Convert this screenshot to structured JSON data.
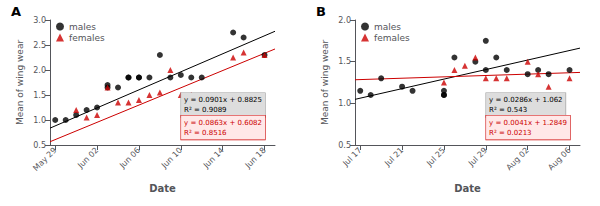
{
  "chart_data": [
    {
      "type": "scatter",
      "title": "A",
      "x_label": "Date",
      "y_label": "Mean of wing wear",
      "xlim": [
        -0.5,
        21
      ],
      "ylim": [
        0.5,
        3.0
      ],
      "xticks": [
        {
          "value": 0,
          "label": "May 29"
        },
        {
          "value": 4,
          "label": "Jun 02"
        },
        {
          "value": 8,
          "label": "Jun 06"
        },
        {
          "value": 12,
          "label": "Jun 10"
        },
        {
          "value": 16,
          "label": "Jun 14"
        },
        {
          "value": 20,
          "label": "Jun 18"
        }
      ],
      "yticks": [
        0.5,
        {
          "value": 1.0,
          "label": "1.0"
        },
        1.5,
        {
          "value": 2.0,
          "label": "2.0"
        },
        2.5,
        {
          "value": 3.0,
          "label": "3.0"
        }
      ],
      "grid": false,
      "legend": "upper left",
      "series": [
        {
          "name": "males",
          "type": "scatter",
          "color": "#000000",
          "marker": "circle",
          "x": [
            0,
            1,
            2,
            3,
            4,
            5,
            5,
            6,
            7,
            7,
            8,
            8,
            9,
            10,
            11,
            12,
            13,
            14,
            17,
            18,
            20
          ],
          "values": [
            1.0,
            1.0,
            1.1,
            1.2,
            1.25,
            1.65,
            1.7,
            1.65,
            1.85,
            1.85,
            1.85,
            1.85,
            1.85,
            2.3,
            1.85,
            1.9,
            1.85,
            1.85,
            2.75,
            2.65,
            2.3
          ]
        },
        {
          "name": "females",
          "type": "scatter",
          "color": "#cc0000",
          "marker": "triangle",
          "x": [
            2,
            3,
            4,
            5,
            6,
            7,
            8,
            9,
            10,
            11,
            12,
            13,
            14,
            17,
            18,
            20
          ],
          "values": [
            1.2,
            1.05,
            1.1,
            1.65,
            1.35,
            1.35,
            1.4,
            1.5,
            1.55,
            2.0,
            1.5,
            1.5,
            1.45,
            2.25,
            2.35,
            2.3
          ]
        },
        {
          "type": "line",
          "color": "#000000",
          "x": [
            -0.5,
            21
          ],
          "values": [
            0.83745,
            2.7746
          ]
        },
        {
          "type": "line",
          "color": "#cc0000",
          "x": [
            -0.5,
            21
          ],
          "values": [
            0.56505,
            2.4205
          ]
        }
      ],
      "annotations": [
        {
          "text": "y = 0.0901x + 0.8825\nR² = 0.9089",
          "color": "#000000"
        },
        {
          "text": "y = 0.0863x + 0.6082\nR² = 0.8516",
          "color": "#cc0000"
        }
      ]
    },
    {
      "type": "scatter",
      "title": "B",
      "x_label": "Date",
      "y_label": "Mean of wing wear",
      "xlim": [
        -0.5,
        21
      ],
      "ylim": [
        0.5,
        2.0
      ],
      "xticks": [
        {
          "value": 0,
          "label": "Jul 17"
        },
        {
          "value": 4,
          "label": "Jul 21"
        },
        {
          "value": 8,
          "label": "Jul 25"
        },
        {
          "value": 12,
          "label": "Jul 29"
        },
        {
          "value": 16,
          "label": "Aug 02"
        },
        {
          "value": 20,
          "label": "Aug 06"
        }
      ],
      "yticks": [
        0.5,
        {
          "value": 1.0,
          "label": "1.0"
        },
        1.5,
        {
          "value": 2.0,
          "label": "2.0"
        }
      ],
      "grid": false,
      "legend": "upper left",
      "series": [
        {
          "name": "males",
          "type": "scatter",
          "color": "#000000",
          "marker": "circle",
          "x": [
            0,
            1,
            2,
            4,
            5,
            8,
            8,
            8,
            9,
            11,
            12,
            12,
            13,
            14,
            16,
            17,
            18,
            20
          ],
          "values": [
            1.15,
            1.1,
            1.3,
            1.2,
            1.15,
            1.1,
            1.15,
            1.1,
            1.55,
            1.5,
            1.4,
            1.75,
            1.55,
            1.4,
            1.35,
            1.4,
            1.35,
            1.4
          ]
        },
        {
          "name": "females",
          "type": "scatter",
          "color": "#cc0000",
          "marker": "triangle",
          "x": [
            8,
            9,
            10,
            11,
            12,
            13,
            14,
            16,
            17,
            18,
            20
          ],
          "values": [
            1.25,
            1.4,
            1.45,
            1.55,
            1.3,
            1.3,
            1.3,
            1.5,
            1.35,
            1.2,
            1.3
          ]
        },
        {
          "type": "line",
          "color": "#000000",
          "x": [
            -0.5,
            21
          ],
          "values": [
            1.0477,
            1.6626
          ]
        },
        {
          "type": "line",
          "color": "#cc0000",
          "x": [
            -0.5,
            21
          ],
          "values": [
            1.28285,
            1.371
          ]
        }
      ],
      "annotations": [
        {
          "text": "y = 0.0286x + 1.062\nR² = 0.543",
          "color": "#000000"
        },
        {
          "text": "y = 0.0041x + 1.2849\nR² = 0.0213",
          "color": "#cc0000"
        }
      ]
    }
  ]
}
